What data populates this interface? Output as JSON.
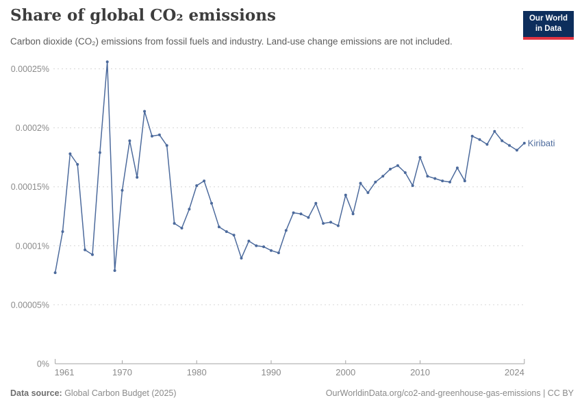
{
  "header": {
    "title": "Share of global CO₂ emissions",
    "subtitle": "Carbon dioxide (CO₂) emissions from fossil fuels and industry. Land-use change emissions are not included.",
    "logo": {
      "line1": "Our World",
      "line2": "in Data",
      "bg_color": "#0d2e5c",
      "accent_color": "#e23442"
    }
  },
  "chart_data": {
    "type": "line",
    "title": "Share of global CO₂ emissions",
    "xlabel": "",
    "ylabel": "",
    "xlim": [
      1961,
      2024
    ],
    "ylim": [
      0,
      0.00025
    ],
    "grid": "horizontal-dashed",
    "legend_position": "end-of-line-label",
    "x_ticks": [
      1961,
      1970,
      1980,
      1990,
      2000,
      2010,
      2024
    ],
    "y_ticks": [
      {
        "value": 0,
        "label": "0%"
      },
      {
        "value": 5e-05,
        "label": "0.00005%"
      },
      {
        "value": 0.0001,
        "label": "0.0001%"
      },
      {
        "value": 0.00015,
        "label": "0.00015%"
      },
      {
        "value": 0.0002,
        "label": "0.0002%"
      },
      {
        "value": 0.00025,
        "label": "0.00025%"
      }
    ],
    "series": [
      {
        "name": "Kiribati",
        "color": "#4C6A9C",
        "x": [
          1961,
          1962,
          1963,
          1964,
          1965,
          1966,
          1967,
          1968,
          1969,
          1970,
          1971,
          1972,
          1973,
          1974,
          1975,
          1976,
          1977,
          1978,
          1979,
          1980,
          1981,
          1982,
          1983,
          1984,
          1985,
          1986,
          1987,
          1988,
          1989,
          1990,
          1991,
          1992,
          1993,
          1994,
          1995,
          1996,
          1997,
          1998,
          1999,
          2000,
          2001,
          2002,
          2003,
          2004,
          2005,
          2006,
          2007,
          2008,
          2009,
          2010,
          2011,
          2012,
          2013,
          2014,
          2015,
          2016,
          2017,
          2018,
          2019,
          2020,
          2021,
          2022,
          2023,
          2024
        ],
        "values": [
          7.72e-05,
          0.000112,
          0.000178,
          0.000169,
          9.65e-05,
          9.25e-05,
          0.000179,
          0.000256,
          7.9e-05,
          0.000147,
          0.000189,
          0.000158,
          0.000214,
          0.000193,
          0.000194,
          0.000185,
          0.000119,
          0.000115,
          0.000131,
          0.000151,
          0.000155,
          0.000136,
          0.000116,
          0.000112,
          0.000109,
          8.95e-05,
          0.000104,
          0.0001,
          9.92e-05,
          9.6e-05,
          9.4e-05,
          0.000113,
          0.000128,
          0.000127,
          0.000124,
          0.000136,
          0.000119,
          0.00012,
          0.000117,
          0.000143,
          0.000127,
          0.000153,
          0.000145,
          0.000154,
          0.000159,
          0.000165,
          0.000168,
          0.000162,
          0.000151,
          0.000175,
          0.000159,
          0.000157,
          0.000155,
          0.000154,
          0.000166,
          0.000155,
          0.000193,
          0.00019,
          0.000186,
          0.000197,
          0.000189,
          0.000185,
          0.000181,
          0.000187
        ]
      }
    ],
    "colors": {
      "line": "#4C6A9C",
      "grid": "#d6d6d6",
      "axis": "#a3a3a3",
      "tick_label": "#8a8a8a"
    }
  },
  "footer": {
    "source_label": "Data source:",
    "source_text": " Global Carbon Budget (2025)",
    "right_text": "OurWorldinData.org/co2-and-greenhouse-gas-emissions | CC BY"
  }
}
